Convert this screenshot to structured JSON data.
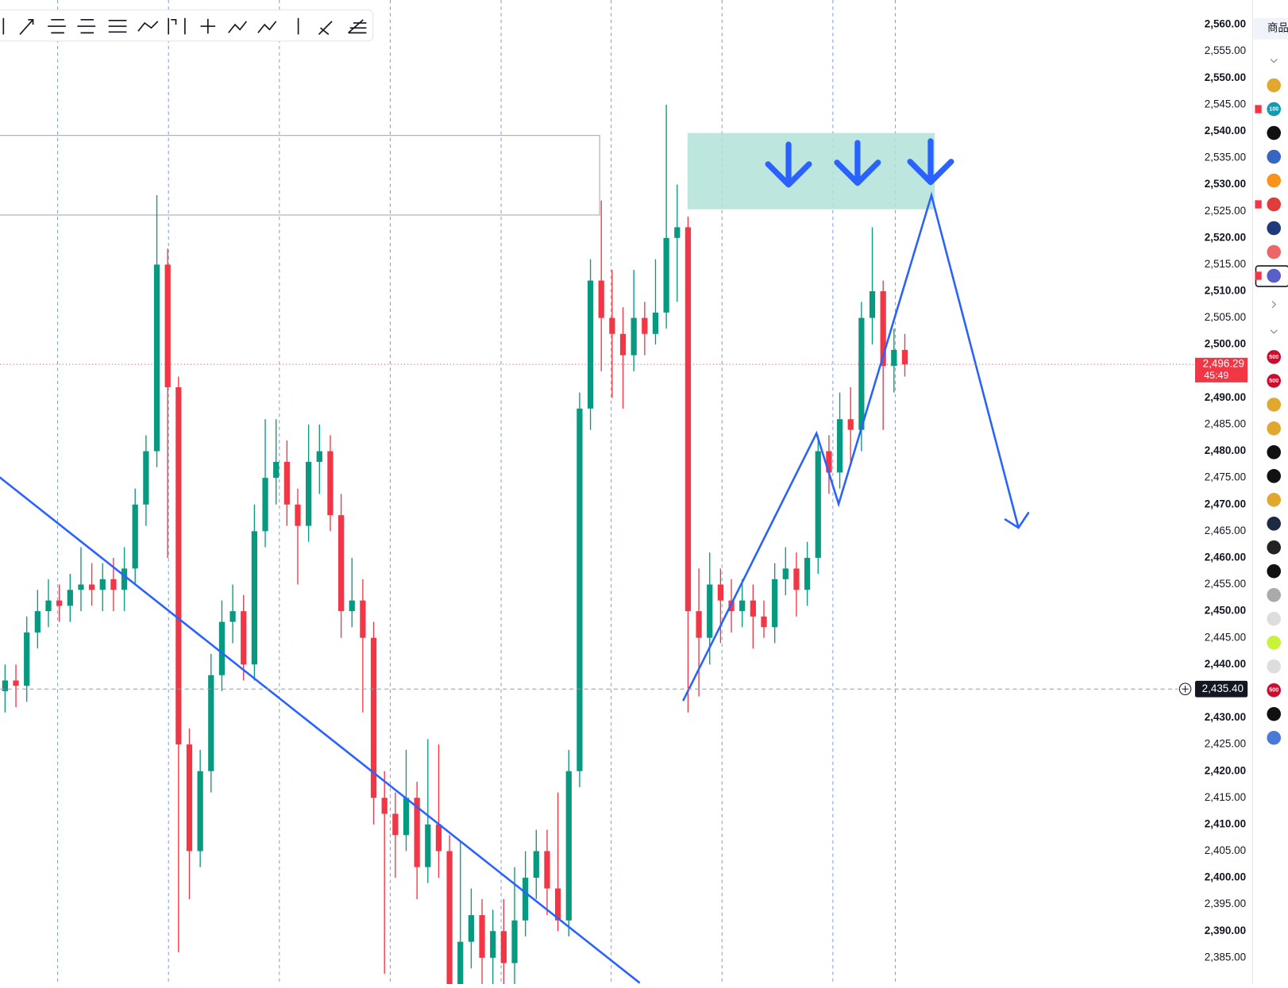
{
  "chart_data": {
    "type": "candlestick",
    "open": [
      2435,
      2437,
      2436,
      2446,
      2450,
      2452,
      2451,
      2454,
      2455,
      2454,
      2456,
      2454,
      2458,
      2470,
      2480,
      2515,
      2492,
      2425,
      2405,
      2420,
      2438,
      2448,
      2450,
      2440,
      2465,
      2475,
      2478,
      2470,
      2466,
      2478,
      2480,
      2468,
      2450,
      2452,
      2445,
      2415,
      2412,
      2408,
      2415,
      2402,
      2410,
      2405,
      2380,
      2388,
      2393,
      2385,
      2390,
      2384,
      2392,
      2400,
      2405,
      2398,
      2392,
      2420,
      2488,
      2512,
      2505,
      2502,
      2498,
      2505,
      2502,
      2506,
      2520,
      2522,
      2450,
      2445,
      2455,
      2452,
      2450,
      2452,
      2449,
      2447,
      2456,
      2458,
      2454,
      2460,
      2480,
      2476,
      2486,
      2484,
      2505,
      2510,
      2496,
      2499
    ],
    "high": [
      2440,
      2440,
      2449,
      2454,
      2456,
      2455,
      2457,
      2462,
      2459,
      2459,
      2460,
      2462,
      2473,
      2483,
      2528,
      2518,
      2494,
      2428,
      2424,
      2442,
      2452,
      2455,
      2453,
      2470,
      2486,
      2486,
      2482,
      2473,
      2485,
      2485,
      2483,
      2472,
      2460,
      2456,
      2448,
      2420,
      2416,
      2424,
      2418,
      2426,
      2425,
      2408,
      2407,
      2398,
      2396,
      2394,
      2396,
      2402,
      2405,
      2409,
      2409,
      2416,
      2424,
      2491,
      2516,
      2527,
      2514,
      2507,
      2514,
      2508,
      2516,
      2545,
      2530,
      2524,
      2458,
      2461,
      2458,
      2456,
      2456,
      2455,
      2452,
      2459,
      2462,
      2461,
      2463,
      2483,
      2483,
      2491,
      2492,
      2508,
      2522,
      2512,
      2503,
      2502
    ],
    "low": [
      2431,
      2432,
      2433,
      2443,
      2447,
      2448,
      2448,
      2450,
      2451,
      2450,
      2450,
      2450,
      2455,
      2466,
      2477,
      2460,
      2386,
      2396,
      2402,
      2416,
      2435,
      2444,
      2437,
      2437,
      2462,
      2470,
      2466,
      2455,
      2463,
      2472,
      2465,
      2445,
      2447,
      2431,
      2410,
      2382,
      2400,
      2405,
      2396,
      2399,
      2400,
      2375,
      2376,
      2383,
      2380,
      2380,
      2379,
      2379,
      2389,
      2396,
      2393,
      2390,
      2389,
      2417,
      2484,
      2495,
      2490,
      2488,
      2495,
      2498,
      2500,
      2503,
      2508,
      2431,
      2434,
      2440,
      2444,
      2446,
      2447,
      2443,
      2445,
      2444,
      2453,
      2449,
      2451,
      2457,
      2472,
      2473,
      2478,
      2480,
      2500,
      2484,
      2491,
      2494
    ],
    "close": [
      2437,
      2436,
      2446,
      2450,
      2452,
      2451,
      2454,
      2455,
      2454,
      2456,
      2454,
      2458,
      2470,
      2480,
      2515,
      2492,
      2425,
      2405,
      2420,
      2438,
      2448,
      2450,
      2440,
      2465,
      2475,
      2478,
      2470,
      2466,
      2478,
      2480,
      2468,
      2450,
      2452,
      2445,
      2415,
      2412,
      2408,
      2415,
      2402,
      2410,
      2405,
      2380,
      2388,
      2393,
      2385,
      2390,
      2384,
      2392,
      2400,
      2405,
      2398,
      2392,
      2420,
      2488,
      2512,
      2505,
      2502,
      2498,
      2505,
      2502,
      2506,
      2520,
      2522,
      2450,
      2445,
      2455,
      2452,
      2450,
      2452,
      2449,
      2447,
      2456,
      2458,
      2454,
      2460,
      2480,
      2476,
      2486,
      2484,
      2505,
      2510,
      2496,
      2499,
      2496.29
    ],
    "up_color": "#089981",
    "down_color": "#f23645",
    "ylim": [
      2380.07,
      2564.62
    ],
    "yticks": [
      {
        "value": 2560,
        "label": "2,560.00"
      },
      {
        "value": 2555,
        "label": "2,555.00"
      },
      {
        "value": 2550,
        "label": "2,550.00"
      },
      {
        "value": 2545,
        "label": "2,545.00"
      },
      {
        "value": 2540,
        "label": "2,540.00"
      },
      {
        "value": 2535,
        "label": "2,535.00"
      },
      {
        "value": 2530,
        "label": "2,530.00"
      },
      {
        "value": 2525,
        "label": "2,525.00"
      },
      {
        "value": 2520,
        "label": "2,520.00"
      },
      {
        "value": 2515,
        "label": "2,515.00"
      },
      {
        "value": 2510,
        "label": "2,510.00"
      },
      {
        "value": 2505,
        "label": "2,505.00"
      },
      {
        "value": 2500,
        "label": "2,500.00"
      },
      {
        "value": 2490,
        "label": "2,490.00"
      },
      {
        "value": 2485,
        "label": "2,485.00"
      },
      {
        "value": 2480,
        "label": "2,480.00"
      },
      {
        "value": 2475,
        "label": "2,475.00"
      },
      {
        "value": 2470,
        "label": "2,470.00"
      },
      {
        "value": 2465,
        "label": "2,465.00"
      },
      {
        "value": 2460,
        "label": "2,460.00"
      },
      {
        "value": 2455,
        "label": "2,455.00"
      },
      {
        "value": 2450,
        "label": "2,450.00"
      },
      {
        "value": 2445,
        "label": "2,445.00"
      },
      {
        "value": 2440,
        "label": "2,440.00"
      },
      {
        "value": 2430,
        "label": "2,430.00"
      },
      {
        "value": 2425,
        "label": "2,425.00"
      },
      {
        "value": 2420,
        "label": "2,420.00"
      },
      {
        "value": 2415,
        "label": "2,415.00"
      },
      {
        "value": 2410,
        "label": "2,410.00"
      },
      {
        "value": 2405,
        "label": "2,405.00"
      },
      {
        "value": 2400,
        "label": "2,400.00"
      },
      {
        "value": 2395,
        "label": "2,395.00"
      },
      {
        "value": 2390,
        "label": "2,390.00"
      },
      {
        "value": 2385,
        "label": "2,385.00"
      }
    ],
    "grid": false,
    "last_price": {
      "value": 2496.29,
      "label": "2,496.29",
      "countdown": "45:49",
      "color": "#f23645"
    },
    "crosshair": {
      "value": 2435.4,
      "label": "2,435.40"
    }
  },
  "sidebar": {
    "header": "商品",
    "badges": [
      "100",
      "500",
      "500",
      "500"
    ]
  }
}
